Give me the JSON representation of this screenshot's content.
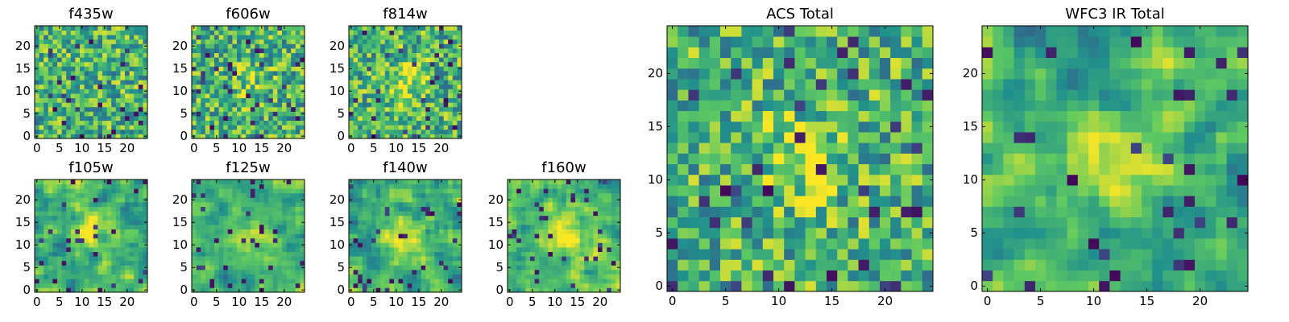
{
  "chart_data": [
    {
      "type": "heatmap",
      "title": "f435w",
      "x_ticks": [
        0,
        5,
        10,
        15,
        20
      ],
      "y_ticks": [
        0,
        5,
        10,
        15,
        20
      ],
      "grid_size": 25,
      "colormap": "viridis",
      "grid": false
    },
    {
      "type": "heatmap",
      "title": "f606w",
      "x_ticks": [
        0,
        5,
        10,
        15,
        20
      ],
      "y_ticks": [
        0,
        5,
        10,
        15,
        20
      ],
      "grid_size": 25,
      "colormap": "viridis",
      "grid": false
    },
    {
      "type": "heatmap",
      "title": "f814w",
      "x_ticks": [
        0,
        5,
        10,
        15,
        20
      ],
      "y_ticks": [
        0,
        5,
        10,
        15,
        20
      ],
      "grid_size": 25,
      "colormap": "viridis",
      "grid": false
    },
    {
      "type": "heatmap",
      "title": "f105w",
      "x_ticks": [
        0,
        5,
        10,
        15,
        20
      ],
      "y_ticks": [
        0,
        5,
        10,
        15,
        20
      ],
      "grid_size": 25,
      "colormap": "viridis",
      "grid": false
    },
    {
      "type": "heatmap",
      "title": "f125w",
      "x_ticks": [
        0,
        5,
        10,
        15,
        20
      ],
      "y_ticks": [
        0,
        5,
        10,
        15,
        20
      ],
      "grid_size": 25,
      "colormap": "viridis",
      "grid": false
    },
    {
      "type": "heatmap",
      "title": "f140w",
      "x_ticks": [
        0,
        5,
        10,
        15,
        20
      ],
      "y_ticks": [
        0,
        5,
        10,
        15,
        20
      ],
      "grid_size": 25,
      "colormap": "viridis",
      "grid": false
    },
    {
      "type": "heatmap",
      "title": "f160w",
      "x_ticks": [
        0,
        5,
        10,
        15,
        20
      ],
      "y_ticks": [
        0,
        5,
        10,
        15,
        20
      ],
      "grid_size": 25,
      "colormap": "viridis",
      "grid": false
    },
    {
      "type": "heatmap",
      "title": "ACS Total",
      "x_ticks": [
        0,
        5,
        10,
        15,
        20
      ],
      "y_ticks": [
        0,
        5,
        10,
        15,
        20
      ],
      "grid_size": 25,
      "colormap": "viridis",
      "grid": false
    },
    {
      "type": "heatmap",
      "title": "WFC3 IR Total",
      "x_ticks": [
        0,
        5,
        10,
        15,
        20
      ],
      "y_ticks": [
        0,
        5,
        10,
        15,
        20
      ],
      "grid_size": 25,
      "colormap": "viridis",
      "grid": false
    }
  ],
  "colors": {
    "viridis_stops": [
      "#440154",
      "#3b528b",
      "#21918c",
      "#5ec962",
      "#fde725"
    ]
  }
}
